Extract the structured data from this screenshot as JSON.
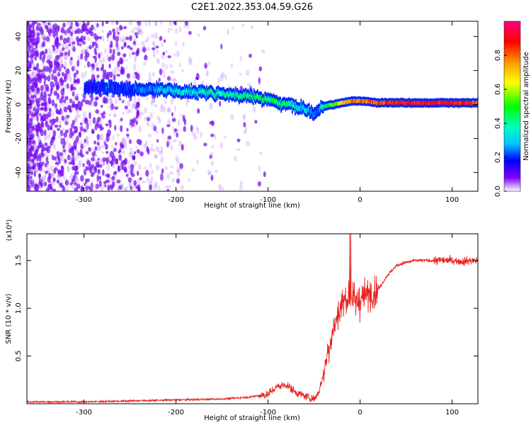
{
  "figure_title": "C2E1.2022.353.04.59.G26",
  "colors": {
    "snr_line": "#e8231f",
    "frame": "#000000",
    "colorbar": [
      "#ff0080",
      "#ff0000",
      "#ffa000",
      "#ffff00",
      "#00ff00",
      "#00ffc0",
      "#00c8ff",
      "#0000ff",
      "#8000ff",
      "#ffffff"
    ]
  },
  "chart_data": [
    {
      "type": "heatmap",
      "title": "",
      "xlabel": "Height of straight line (km)",
      "ylabel": "Frequency (Hz)",
      "xlim": [
        -362,
        128
      ],
      "ylim": [
        -51,
        49
      ],
      "x_ticks": [
        -300,
        -200,
        -100,
        0,
        100
      ],
      "y_ticks": [
        -40,
        -20,
        0,
        20,
        40
      ],
      "x_tick_labels": [
        "-300",
        "-200",
        "-100",
        "0",
        "100"
      ],
      "y_tick_labels": [
        "-40",
        "-20",
        "0",
        "20",
        "40"
      ],
      "colorbar": {
        "label": "Normalized spectral amplitude",
        "range": [
          0,
          1
        ],
        "ticks": [
          0.0,
          0.2,
          0.4,
          0.6,
          0.8
        ],
        "tick_labels": [
          "0.0",
          "0.2",
          "0.4",
          "0.6",
          "0.8"
        ]
      },
      "ridge": {
        "x": [
          -300,
          -280,
          -250,
          -220,
          -200,
          -180,
          -160,
          -140,
          -120,
          -100,
          -90,
          -80,
          -70,
          -60,
          -50,
          -45,
          -40,
          -30,
          -20,
          -10,
          0,
          20,
          50,
          80,
          100,
          128
        ],
        "frequency": [
          10,
          10,
          9,
          9,
          8,
          7,
          7,
          6,
          5,
          3,
          1,
          0,
          -1,
          -3,
          -5,
          -3,
          -1,
          0,
          1,
          2,
          2,
          1,
          1,
          1,
          1,
          1
        ],
        "amplitude": [
          0.18,
          0.2,
          0.22,
          0.3,
          0.35,
          0.38,
          0.4,
          0.42,
          0.45,
          0.45,
          0.45,
          0.45,
          0.4,
          0.35,
          0.25,
          0.3,
          0.4,
          0.55,
          0.7,
          0.8,
          0.8,
          0.85,
          0.9,
          0.9,
          0.9,
          0.85
        ]
      }
    },
    {
      "type": "line",
      "title": "",
      "xlabel": "Height of straight line (km)",
      "ylabel": "SNR (10 * v/v)",
      "y_multiplier": "(x10⁴)",
      "xlim": [
        -362,
        128
      ],
      "ylim": [
        0,
        1.78
      ],
      "x_ticks": [
        -300,
        -200,
        -100,
        0,
        100
      ],
      "y_ticks": [
        0.5,
        1.0,
        1.5
      ],
      "x_tick_labels": [
        "-300",
        "-200",
        "-100",
        "0",
        "100"
      ],
      "y_tick_labels": [
        "0.5",
        "1.0",
        "1.5"
      ],
      "series": [
        {
          "x": [
            -362,
            -300,
            -250,
            -200,
            -150,
            -120,
            -100,
            -90,
            -80,
            -70,
            -60,
            -50,
            -45,
            -40,
            -35,
            -30,
            -25,
            -20,
            -15,
            -10,
            -5,
            0,
            10,
            20,
            30,
            40,
            50,
            60,
            80,
            100,
            110,
            120,
            128
          ],
          "y": [
            0.02,
            0.02,
            0.03,
            0.04,
            0.05,
            0.07,
            0.1,
            0.18,
            0.2,
            0.12,
            0.08,
            0.05,
            0.12,
            0.3,
            0.55,
            0.75,
            0.9,
            1.05,
            1.1,
            1.15,
            1.05,
            1.1,
            1.15,
            1.2,
            1.35,
            1.45,
            1.48,
            1.5,
            1.5,
            1.5,
            1.49,
            1.5,
            1.5
          ]
        }
      ]
    }
  ]
}
